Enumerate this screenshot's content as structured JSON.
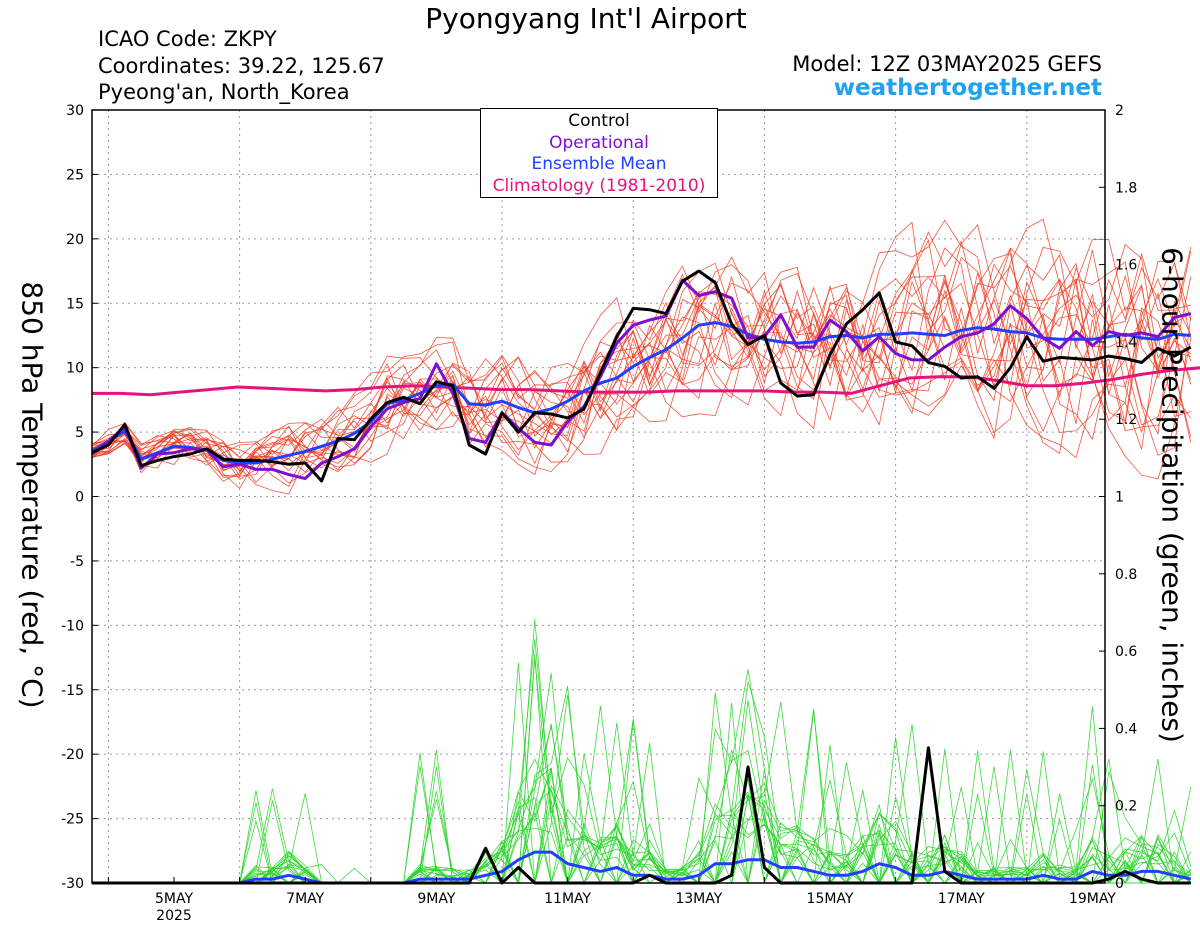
{
  "header": {
    "title": "Pyongyang Int'l Airport",
    "icao": "ICAO Code: ZKPY",
    "coordinates": "Coordinates: 39.22, 125.67",
    "location": "Pyeong'an, North_Korea",
    "model": "Model: 12Z 03MAY2025 GEFS",
    "site": "weathertogether.net"
  },
  "legend": {
    "control": "Control",
    "operational": "Operational",
    "mean": "Ensemble Mean",
    "climatology": "Climatology (1981-2010)"
  },
  "colors": {
    "control": "#000000",
    "operational": "#7e0fd1",
    "mean": "#2040ff",
    "climatology": "#e6137d",
    "members_temp": "#f03a1f",
    "members_precip": "#2bd42b",
    "site": "#1fa2f0"
  },
  "chart_data": {
    "type": "line",
    "xlabel": "",
    "ylabel": "850 hPa Temperature (red, °C)",
    "y2label": "6-hour Precipitation (green, inches)",
    "x_start": "03MAY2025 12Z",
    "x_step_hours": 6,
    "x_ticks": [
      "5MAY",
      "7MAY",
      "9MAY",
      "11MAY",
      "13MAY",
      "15MAY",
      "17MAY",
      "19MAY"
    ],
    "x_year_label": "2025",
    "ylim": [
      -30,
      30
    ],
    "yticks": [
      30,
      25,
      20,
      15,
      10,
      5,
      0,
      -5,
      -10,
      -15,
      -20,
      -25,
      -30
    ],
    "y2lim": [
      0,
      2
    ],
    "y2ticks": [
      2,
      1.8,
      1.6,
      1.4,
      1.2,
      1,
      0.8,
      0.6,
      0.4,
      0.2,
      0
    ],
    "grid": true,
    "legend_position": "top-center",
    "climatology": [
      8.0,
      8.0,
      7.9,
      8.1,
      8.3,
      8.5,
      8.4,
      8.3,
      8.2,
      8.3,
      8.5,
      8.6,
      8.5,
      8.4,
      8.3,
      8.3,
      8.2,
      8.1,
      8.1,
      8.1,
      8.2,
      8.2,
      8.2,
      8.2,
      8.1,
      8.1,
      8.0,
      8.6,
      9.2,
      9.3,
      9.3,
      9.0,
      8.6,
      8.6,
      8.8,
      9.1,
      9.5,
      9.8,
      10.0
    ],
    "control_temp": [
      3.4,
      4.0,
      5.6,
      2.4,
      2.8,
      3.1,
      3.3,
      3.7,
      2.9,
      2.8,
      2.8,
      2.7,
      2.5,
      2.6,
      1.2,
      4.5,
      4.4,
      6.0,
      7.3,
      7.7,
      7.2,
      8.9,
      8.6,
      4.0,
      3.3,
      6.5,
      5.0,
      6.5,
      6.4,
      6.1,
      6.8,
      9.6,
      12.4,
      14.6,
      14.5,
      14.2,
      16.7,
      17.5,
      16.6,
      13.4,
      11.8,
      12.5,
      8.8,
      7.8,
      7.9,
      11.0,
      13.4,
      14.5,
      15.8,
      12.0,
      11.7,
      10.4,
      10.1,
      9.2,
      9.3,
      8.4,
      10.0,
      12.4,
      10.5,
      10.8,
      10.7,
      10.6,
      10.9,
      10.7,
      10.4,
      11.5,
      10.9,
      11.6
    ],
    "operational_temp": [
      3.3,
      4.3,
      5.4,
      2.2,
      3.3,
      3.4,
      3.7,
      3.6,
      2.3,
      2.5,
      2.1,
      2.1,
      1.7,
      1.4,
      2.6,
      3.1,
      3.7,
      5.4,
      6.8,
      7.3,
      7.6,
      10.3,
      8.0,
      4.5,
      4.2,
      6.5,
      5.3,
      4.2,
      4.0,
      5.8,
      7.0,
      9.3,
      11.9,
      13.3,
      13.7,
      14.0,
      16.8,
      15.6,
      15.9,
      15.4,
      12.3,
      12.4,
      14.1,
      11.6,
      11.6,
      13.7,
      12.8,
      11.3,
      12.4,
      11.1,
      10.6,
      10.6,
      11.6,
      12.4,
      12.7,
      13.4,
      14.8,
      13.8,
      12.3,
      11.5,
      12.8,
      11.7,
      12.8,
      12.5,
      12.7,
      12.4,
      13.9,
      14.2
    ],
    "mean_temp": [
      3.5,
      4.3,
      5.1,
      2.9,
      3.4,
      3.9,
      3.8,
      3.6,
      2.8,
      2.6,
      2.6,
      2.9,
      3.2,
      3.5,
      3.9,
      4.3,
      4.9,
      5.8,
      7.2,
      7.5,
      8.0,
      8.6,
      8.7,
      7.2,
      7.1,
      7.4,
      6.9,
      6.5,
      6.8,
      7.4,
      8.2,
      8.8,
      9.2,
      10.1,
      10.8,
      11.4,
      12.3,
      13.3,
      13.5,
      13.2,
      12.6,
      12.2,
      12.0,
      11.9,
      12.0,
      12.4,
      12.5,
      12.3,
      12.6,
      12.6,
      12.7,
      12.6,
      12.5,
      12.9,
      13.1,
      13.0,
      12.8,
      12.7,
      12.3,
      12.2,
      12.2,
      12.2,
      12.4,
      12.6,
      12.3,
      12.2,
      12.6,
      12.5
    ],
    "control_precip": [
      0,
      0,
      0,
      0,
      0,
      0,
      0,
      0,
      0,
      0,
      0,
      0,
      0,
      0,
      0,
      0,
      0,
      0,
      0,
      0,
      0,
      0,
      0,
      0,
      0.09,
      0,
      0.04,
      0,
      0,
      0,
      0,
      0,
      0,
      0,
      0.02,
      0,
      0,
      0,
      0,
      0.02,
      0.3,
      0.04,
      0,
      0,
      0,
      0,
      0,
      0,
      0,
      0,
      0,
      0.35,
      0.03,
      0,
      0,
      0,
      0,
      0,
      0,
      0,
      0,
      0,
      0.01,
      0.03,
      0.01,
      0,
      0,
      0
    ],
    "mean_precip": [
      0,
      0,
      0,
      0,
      0,
      0,
      0,
      0,
      0,
      0,
      0.01,
      0.01,
      0.02,
      0.01,
      0,
      0,
      0,
      0,
      0,
      0,
      0.01,
      0.01,
      0.01,
      0.01,
      0.02,
      0.03,
      0.06,
      0.08,
      0.08,
      0.05,
      0.04,
      0.03,
      0.04,
      0.02,
      0.02,
      0.01,
      0.01,
      0.02,
      0.05,
      0.05,
      0.06,
      0.06,
      0.04,
      0.04,
      0.03,
      0.02,
      0.02,
      0.03,
      0.05,
      0.04,
      0.02,
      0.02,
      0.03,
      0.02,
      0.01,
      0.01,
      0.01,
      0.01,
      0.02,
      0.01,
      0.01,
      0.03,
      0.02,
      0.02,
      0.03,
      0.03,
      0.02,
      0.01
    ],
    "members_temp_range": [
      -1,
      24
    ],
    "members_precip_max": 0.83
  }
}
